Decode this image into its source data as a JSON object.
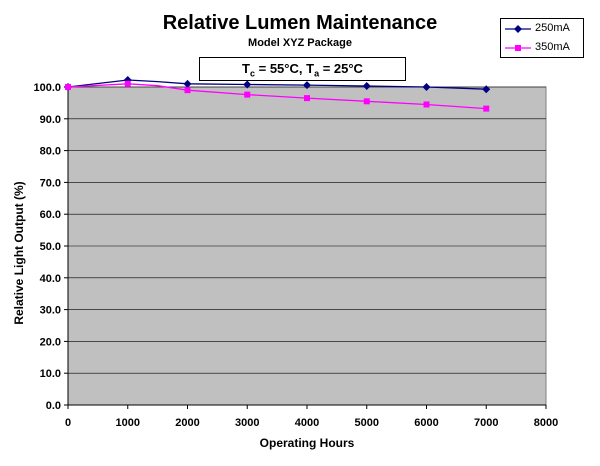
{
  "chart_data": {
    "type": "line",
    "title": "Relative Lumen Maintenance",
    "subtitle": "Model XYZ Package",
    "conditions": {
      "tc_symbol": "T",
      "tc_sub": "c",
      "tc_value": " = 55°C, ",
      "ta_symbol": "T",
      "ta_sub": "a",
      "ta_value": " = 25°C"
    },
    "xlabel": "Operating Hours",
    "ylabel": "Relative Light Output (%)",
    "xlim": [
      0,
      8000
    ],
    "ylim": [
      0,
      100
    ],
    "x_ticks": [
      0,
      1000,
      2000,
      3000,
      4000,
      5000,
      6000,
      7000,
      8000
    ],
    "x_tick_labels": [
      "0",
      "1000",
      "2000",
      "3000",
      "4000",
      "5000",
      "6000",
      "7000",
      "8000"
    ],
    "y_ticks": [
      0,
      10,
      20,
      30,
      40,
      50,
      60,
      70,
      80,
      90,
      100
    ],
    "y_tick_labels": [
      "0.0",
      "10.0",
      "20.0",
      "30.0",
      "40.0",
      "50.0",
      "60.0",
      "70.0",
      "80.0",
      "90.0",
      "100.0"
    ],
    "grid": true,
    "plot_background": "#c0c0c0",
    "legend_position": "top-right",
    "series": [
      {
        "name": "250mA",
        "color": "#000080",
        "marker": "diamond",
        "x": [
          0,
          1000,
          1500,
          2000,
          3000,
          4000,
          5000,
          6000,
          7000
        ],
        "y": [
          100,
          102.2,
          101.7,
          101.0,
          100.8,
          100.6,
          100.3,
          100.0,
          99.3
        ],
        "marker_x": [
          0,
          1000,
          2000,
          3000,
          4000,
          5000,
          6000,
          7000
        ]
      },
      {
        "name": "350mA",
        "color": "#ff00ff",
        "marker": "square",
        "x": [
          0,
          1000,
          1500,
          2000,
          3000,
          4000,
          5000,
          6000,
          7000
        ],
        "y": [
          100,
          101.0,
          100.4,
          99.0,
          97.6,
          96.5,
          95.5,
          94.5,
          93.2
        ],
        "marker_x": [
          0,
          1000,
          2000,
          3000,
          4000,
          5000,
          6000,
          7000
        ]
      }
    ]
  }
}
